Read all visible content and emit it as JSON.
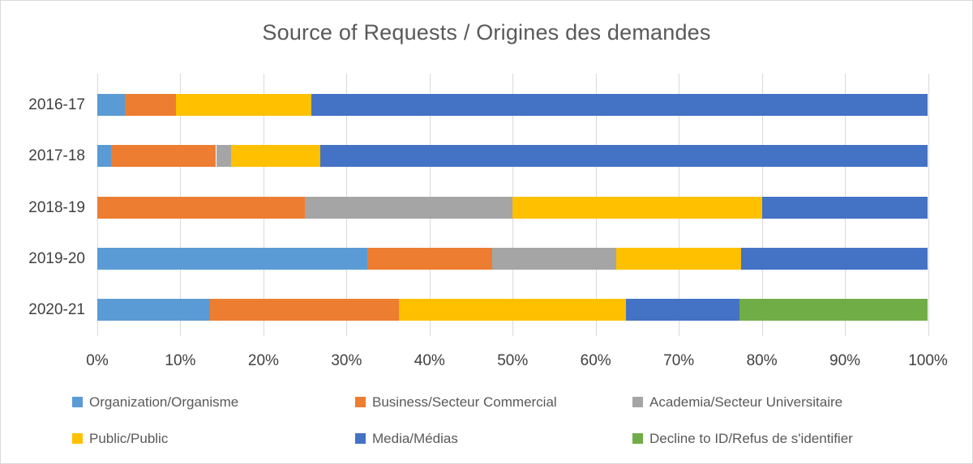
{
  "title": "Source of Requests / Origines des demandes",
  "colors": {
    "organization_blue": "#5B9BD5",
    "business_orange": "#ED7D31",
    "academia_gray": "#A5A5A5",
    "public_yellow": "#FFC000",
    "media_blue": "#4472C4",
    "decline_green": "#70AD47",
    "gridline": "#D9D9D9",
    "axis_text": "#404040",
    "title_text": "#595959"
  },
  "chart_data": {
    "type": "bar",
    "stacked": true,
    "horizontal": true,
    "percent_stacked": true,
    "title": "Source of Requests / Origines des demandes",
    "categories": [
      "2016-17",
      "2017-18",
      "2018-19",
      "2019-20",
      "2020-21"
    ],
    "series": [
      {
        "name": "Organization/Organisme",
        "color": "#5B9BD5",
        "values": [
          3.3,
          1.7,
          0,
          32.5,
          13.6
        ]
      },
      {
        "name": "Business/Secteur Commercial",
        "color": "#ED7D31",
        "values": [
          6.2,
          12.6,
          25,
          15,
          22.7
        ]
      },
      {
        "name": "Academia/Secteur Universitaire",
        "color": "#A5A5A5",
        "values": [
          0,
          1.8,
          25,
          15,
          0
        ]
      },
      {
        "name": "Public/Public",
        "color": "#FFC000",
        "values": [
          16.3,
          10.7,
          30,
          15,
          27.3
        ]
      },
      {
        "name": "Media/Médias",
        "color": "#4472C4",
        "values": [
          74.2,
          73.2,
          20,
          22.5,
          13.7
        ]
      },
      {
        "name": "Decline to ID/Refus de s'identifier",
        "color": "#70AD47",
        "values": [
          0,
          0,
          0,
          0,
          22.7
        ]
      }
    ],
    "x_ticks": [
      "0%",
      "10%",
      "20%",
      "30%",
      "40%",
      "50%",
      "60%",
      "70%",
      "80%",
      "90%",
      "100%"
    ],
    "xlim": [
      0,
      100
    ],
    "xlabel": "",
    "ylabel": "",
    "grid": "vertical",
    "legend_position": "bottom",
    "legend_rows": [
      [
        "Organization/Organisme",
        "Business/Secteur Commercial",
        "Academia/Secteur Universitaire"
      ],
      [
        "Public/Public",
        "Media/Médias",
        "Decline to ID/Refus de s'identifier"
      ]
    ]
  }
}
